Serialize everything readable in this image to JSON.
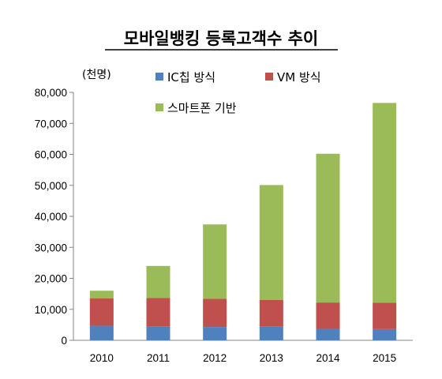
{
  "chart_data": {
    "type": "bar",
    "stacked": true,
    "title": "모바일뱅킹 등록고객수 추이",
    "unit_label": "(천명)",
    "categories": [
      "2010",
      "2011",
      "2012",
      "2013",
      "2014",
      "2015"
    ],
    "series": [
      {
        "name": "IC칩 방식",
        "color": "#4f81bd",
        "values": [
          4700,
          4400,
          4300,
          4400,
          3700,
          3600
        ]
      },
      {
        "name": "VM 방식",
        "color": "#c0504d",
        "values": [
          8800,
          9300,
          9100,
          8600,
          8500,
          8500
        ]
      },
      {
        "name": "스마트폰 기반",
        "color": "#9bbb59",
        "values": [
          2500,
          10300,
          24000,
          37100,
          48000,
          64500
        ]
      }
    ],
    "ylim": [
      0,
      80000
    ],
    "yticks": [
      "0",
      "10,000",
      "20,000",
      "30,000",
      "40,000",
      "50,000",
      "60,000",
      "70,000",
      "80,000"
    ],
    "grid": false,
    "legend_position": "top-left"
  }
}
